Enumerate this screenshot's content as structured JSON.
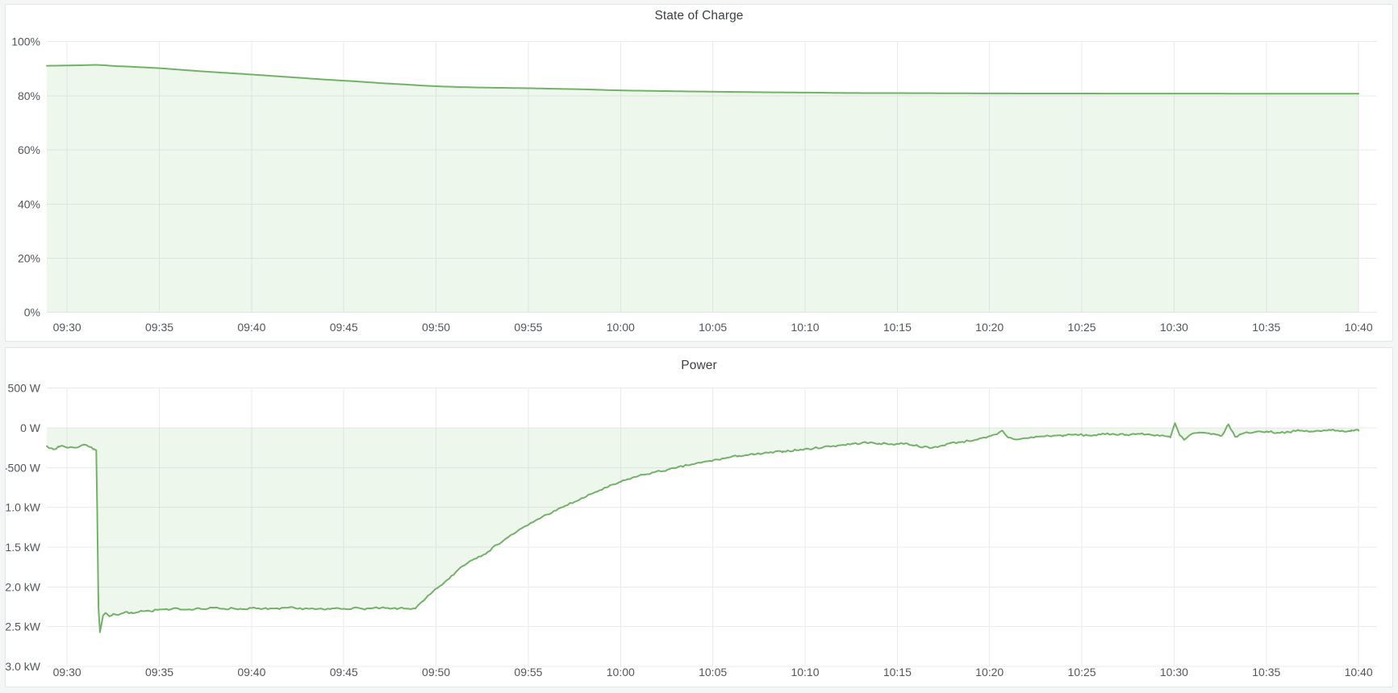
{
  "accent_color": "#73b169",
  "fill_color": "rgba(115,191,105,0.13)",
  "grid_color": "#ebebec",
  "panels": [
    {
      "title": "State of Charge"
    },
    {
      "title": "Power"
    }
  ],
  "chart_data": [
    {
      "type": "area",
      "title": "State of Charge",
      "xlabel": "time",
      "ylabel": "percent",
      "ylim": [
        0,
        100
      ],
      "x_range_minutes": [
        -1.1,
        71.0
      ],
      "grid": true,
      "legend": "none",
      "x_ticks": [
        "09:30",
        "09:35",
        "09:40",
        "09:45",
        "09:50",
        "09:55",
        "10:00",
        "10:05",
        "10:10",
        "10:15",
        "10:20",
        "10:25",
        "10:30",
        "10:35",
        "10:40"
      ],
      "x_tick_minutes": [
        0,
        5,
        10,
        15,
        20,
        25,
        30,
        35,
        40,
        45,
        50,
        55,
        60,
        65,
        70
      ],
      "y_ticks": [
        {
          "value": 100,
          "label": "100%"
        },
        {
          "value": 80,
          "label": "80%"
        },
        {
          "value": 60,
          "label": "60%"
        },
        {
          "value": 40,
          "label": "40%"
        },
        {
          "value": 20,
          "label": "20%"
        },
        {
          "value": 0,
          "label": "0%"
        }
      ],
      "series": [
        {
          "name": "State of Charge",
          "unit": "%",
          "smooth": true,
          "noise_amp": 0,
          "fill_to": 0,
          "points": [
            [
              -1.1,
              91.1
            ],
            [
              0,
              91.2
            ],
            [
              0.9,
              91.3
            ],
            [
              1.7,
              91.4
            ],
            [
              2.6,
              91.0
            ],
            [
              3.6,
              90.7
            ],
            [
              5,
              90.2
            ],
            [
              6,
              89.7
            ],
            [
              7,
              89.2
            ],
            [
              8.3,
              88.6
            ],
            [
              9.5,
              88.1
            ],
            [
              11,
              87.4
            ],
            [
              12.5,
              86.7
            ],
            [
              14,
              86.0
            ],
            [
              15.5,
              85.4
            ],
            [
              17,
              84.7
            ],
            [
              18.3,
              84.2
            ],
            [
              19.5,
              83.7
            ],
            [
              21,
              83.3
            ],
            [
              22.5,
              83.05
            ],
            [
              24,
              82.9
            ],
            [
              25,
              82.8
            ],
            [
              26.5,
              82.6
            ],
            [
              28,
              82.4
            ],
            [
              30,
              82.0
            ],
            [
              32,
              81.8
            ],
            [
              34,
              81.6
            ],
            [
              36,
              81.45
            ],
            [
              38,
              81.3
            ],
            [
              40,
              81.2
            ],
            [
              42.5,
              81.05
            ],
            [
              45,
              81.0
            ],
            [
              47.5,
              80.95
            ],
            [
              50,
              80.9
            ],
            [
              55,
              80.85
            ],
            [
              60,
              80.82
            ],
            [
              65,
              80.8
            ],
            [
              70,
              80.8
            ]
          ]
        }
      ]
    },
    {
      "type": "area",
      "title": "Power",
      "xlabel": "time",
      "ylabel": "watts",
      "ylim": [
        -3000,
        500
      ],
      "x_range_minutes": [
        -1.1,
        71.0
      ],
      "grid": true,
      "legend": "none",
      "x_ticks": [
        "09:30",
        "09:35",
        "09:40",
        "09:45",
        "09:50",
        "09:55",
        "10:00",
        "10:05",
        "10:10",
        "10:15",
        "10:20",
        "10:25",
        "10:30",
        "10:35",
        "10:40"
      ],
      "x_tick_minutes": [
        0,
        5,
        10,
        15,
        20,
        25,
        30,
        35,
        40,
        45,
        50,
        55,
        60,
        65,
        70
      ],
      "y_ticks": [
        {
          "value": 500,
          "label": "500 W"
        },
        {
          "value": 0,
          "label": "0 W"
        },
        {
          "value": -500,
          "label": "-500 W"
        },
        {
          "value": -1000,
          "label": "-1.0 kW"
        },
        {
          "value": -1500,
          "label": "-1.5 kW"
        },
        {
          "value": -2000,
          "label": "-2.0 kW"
        },
        {
          "value": -2500,
          "label": "-2.5 kW"
        },
        {
          "value": -3000,
          "label": "-3.0 kW"
        }
      ],
      "series": [
        {
          "name": "Power",
          "unit": "W",
          "smooth": false,
          "noise_amp": 12,
          "noise_step_minutes": 0.13,
          "noise_seed": 7,
          "fill_to": 0,
          "points": [
            [
              -1.1,
              -230
            ],
            [
              -0.85,
              -255
            ],
            [
              -0.6,
              -265
            ],
            [
              -0.45,
              -240
            ],
            [
              -0.25,
              -225
            ],
            [
              0,
              -250
            ],
            [
              0.2,
              -240
            ],
            [
              0.45,
              -250
            ],
            [
              0.7,
              -230
            ],
            [
              0.9,
              -210
            ],
            [
              1.1,
              -225
            ],
            [
              1.3,
              -240
            ],
            [
              1.45,
              -265
            ],
            [
              1.58,
              -280
            ],
            [
              1.63,
              -1000
            ],
            [
              1.7,
              -2250
            ],
            [
              1.78,
              -2570
            ],
            [
              1.88,
              -2450
            ],
            [
              1.95,
              -2360
            ],
            [
              2.1,
              -2330
            ],
            [
              2.3,
              -2370
            ],
            [
              2.5,
              -2340
            ],
            [
              2.8,
              -2350
            ],
            [
              3.1,
              -2320
            ],
            [
              3.5,
              -2330
            ],
            [
              4,
              -2300
            ],
            [
              4.5,
              -2305
            ],
            [
              5,
              -2285
            ],
            [
              5.5,
              -2290
            ],
            [
              6,
              -2270
            ],
            [
              6.5,
              -2285
            ],
            [
              7,
              -2270
            ],
            [
              7.5,
              -2280
            ],
            [
              8,
              -2260
            ],
            [
              8.5,
              -2275
            ],
            [
              9,
              -2270
            ],
            [
              9.5,
              -2280
            ],
            [
              10,
              -2265
            ],
            [
              10.5,
              -2280
            ],
            [
              11,
              -2270
            ],
            [
              11.5,
              -2280
            ],
            [
              12,
              -2260
            ],
            [
              12.5,
              -2275
            ],
            [
              13,
              -2270
            ],
            [
              13.5,
              -2280
            ],
            [
              14,
              -2285
            ],
            [
              14.5,
              -2270
            ],
            [
              15,
              -2275
            ],
            [
              15.5,
              -2265
            ],
            [
              16,
              -2275
            ],
            [
              16.5,
              -2270
            ],
            [
              17,
              -2265
            ],
            [
              17.5,
              -2275
            ],
            [
              18,
              -2270
            ],
            [
              18.5,
              -2275
            ],
            [
              18.9,
              -2265
            ],
            [
              19.3,
              -2180
            ],
            [
              19.7,
              -2090
            ],
            [
              20.2,
              -1990
            ],
            [
              20.7,
              -1900
            ],
            [
              21.3,
              -1760
            ],
            [
              21.8,
              -1680
            ],
            [
              22.3,
              -1620
            ],
            [
              22.8,
              -1560
            ],
            [
              23.3,
              -1470
            ],
            [
              23.8,
              -1390
            ],
            [
              24.4,
              -1300
            ],
            [
              25,
              -1220
            ],
            [
              25.5,
              -1150
            ],
            [
              26,
              -1090
            ],
            [
              26.5,
              -1040
            ],
            [
              27,
              -980
            ],
            [
              27.5,
              -930
            ],
            [
              28,
              -880
            ],
            [
              28.6,
              -810
            ],
            [
              29.3,
              -745
            ],
            [
              30,
              -680
            ],
            [
              30.6,
              -630
            ],
            [
              31.2,
              -590
            ],
            [
              31.8,
              -560
            ],
            [
              32.5,
              -530
            ],
            [
              33,
              -505
            ],
            [
              33.6,
              -470
            ],
            [
              34.3,
              -440
            ],
            [
              35,
              -410
            ],
            [
              35.7,
              -380
            ],
            [
              36.4,
              -350
            ],
            [
              37.2,
              -335
            ],
            [
              38,
              -315
            ],
            [
              38.8,
              -295
            ],
            [
              39.5,
              -280
            ],
            [
              40.2,
              -265
            ],
            [
              41,
              -240
            ],
            [
              41.8,
              -220
            ],
            [
              42.6,
              -200
            ],
            [
              43.3,
              -185
            ],
            [
              44,
              -195
            ],
            [
              44.7,
              -205
            ],
            [
              45.4,
              -195
            ],
            [
              46.1,
              -225
            ],
            [
              46.8,
              -255
            ],
            [
              47.3,
              -230
            ],
            [
              47.8,
              -195
            ],
            [
              48.5,
              -175
            ],
            [
              49.2,
              -150
            ],
            [
              49.8,
              -125
            ],
            [
              50.4,
              -80
            ],
            [
              50.7,
              -35
            ],
            [
              51,
              -120
            ],
            [
              51.5,
              -145
            ],
            [
              52,
              -130
            ],
            [
              52.6,
              -110
            ],
            [
              53.2,
              -100
            ],
            [
              54,
              -95
            ],
            [
              54.7,
              -85
            ],
            [
              55.4,
              -95
            ],
            [
              56,
              -85
            ],
            [
              56.7,
              -75
            ],
            [
              57.4,
              -85
            ],
            [
              58,
              -75
            ],
            [
              58.7,
              -85
            ],
            [
              59.4,
              -95
            ],
            [
              59.8,
              -120
            ],
            [
              60.05,
              60
            ],
            [
              60.3,
              -90
            ],
            [
              60.55,
              -150
            ],
            [
              61,
              -70
            ],
            [
              61.5,
              -60
            ],
            [
              62,
              -80
            ],
            [
              62.6,
              -95
            ],
            [
              62.95,
              45
            ],
            [
              63.3,
              -110
            ],
            [
              63.8,
              -65
            ],
            [
              64.4,
              -50
            ],
            [
              65,
              -45
            ],
            [
              65.6,
              -60
            ],
            [
              66.2,
              -50
            ],
            [
              66.8,
              -35
            ],
            [
              67.4,
              -45
            ],
            [
              68,
              -40
            ],
            [
              68.6,
              -20
            ],
            [
              69.2,
              -45
            ],
            [
              69.6,
              -30
            ],
            [
              70,
              -35
            ]
          ]
        }
      ]
    }
  ]
}
